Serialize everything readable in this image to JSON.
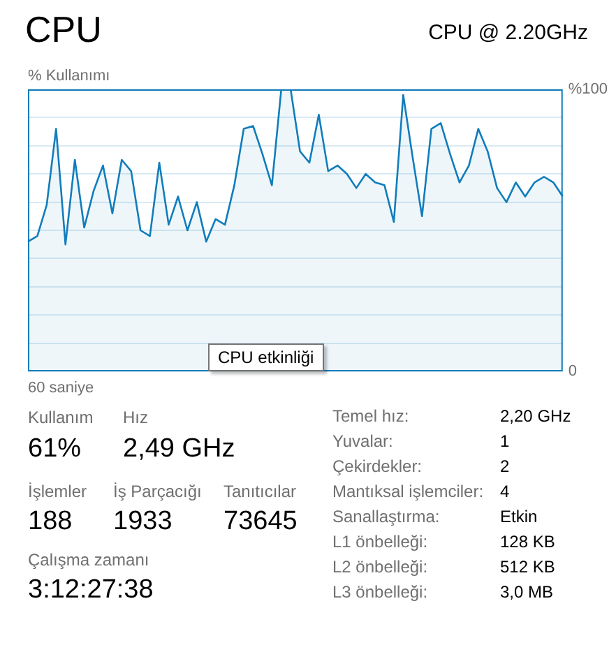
{
  "chart_data": {
    "type": "area",
    "title": "CPU",
    "subtitle": "CPU @ 2.20GHz",
    "ylabel": "% Kullanımı",
    "categories": [
      null,
      null,
      null,
      null,
      null,
      null,
      null,
      null,
      null,
      null,
      null,
      null,
      null,
      null,
      null,
      null,
      null,
      null,
      null,
      null,
      null,
      null,
      null,
      null,
      null,
      null,
      null,
      null,
      null,
      null,
      null,
      null,
      null,
      null,
      null,
      null,
      null,
      null,
      null,
      null,
      null,
      null,
      null,
      null,
      null,
      null,
      null,
      null,
      null,
      null,
      null,
      null,
      null,
      null,
      null,
      null,
      null,
      null
    ],
    "series": [
      {
        "color": "#117dbb",
        "values": [
          46,
          48,
          59,
          86,
          45,
          75,
          51,
          64,
          73,
          56,
          75,
          71,
          50,
          48,
          74,
          52,
          62,
          50,
          60,
          46,
          54,
          52,
          66,
          86,
          87,
          77,
          66,
          100,
          100,
          78,
          74,
          91,
          71,
          73,
          70,
          65,
          70,
          67,
          66,
          53,
          98,
          76,
          55,
          86,
          88,
          77,
          67,
          73,
          86,
          78,
          65,
          60,
          67,
          62,
          67,
          69,
          67,
          62
        ]
      }
    ],
    "ylim": [
      0,
      100
    ],
    "yticks": [
      {
        "value": 0,
        "label": "0"
      },
      {
        "value": 10,
        "label": null
      },
      {
        "value": 20,
        "label": null
      },
      {
        "value": 30,
        "label": null
      },
      {
        "value": 40,
        "label": null
      },
      {
        "value": 50,
        "label": null
      },
      {
        "value": 60,
        "label": null
      },
      {
        "value": 70,
        "label": null
      },
      {
        "value": 80,
        "label": null
      },
      {
        "value": 90,
        "label": null
      },
      {
        "value": 100,
        "label": "%100"
      }
    ],
    "grid": "y",
    "legend": false,
    "marker": "none",
    "line_style": "solid",
    "annotations": [
      "60 saniye",
      "Kullanım",
      "61%",
      "Hız",
      "2,49 GHz",
      "İşlemler",
      "188",
      "İş Parçacığı",
      "1933",
      "Tanıtıcılar",
      "73645",
      "Çalışma zamanı",
      "3:12:27:38",
      "Temel hız:",
      "2,20 GHz",
      "Yuvalar:",
      "1",
      "Çekirdekler:",
      "2",
      "Mantıksal işlemciler:",
      "4",
      "Sanallaştırma:",
      "Etkin",
      "L1 önbelleği:",
      "128 KB",
      "L2 önbelleği:",
      "512 KB",
      "L3 önbelleği:",
      "3,0 MB",
      "CPU etkinliği"
    ]
  }
}
